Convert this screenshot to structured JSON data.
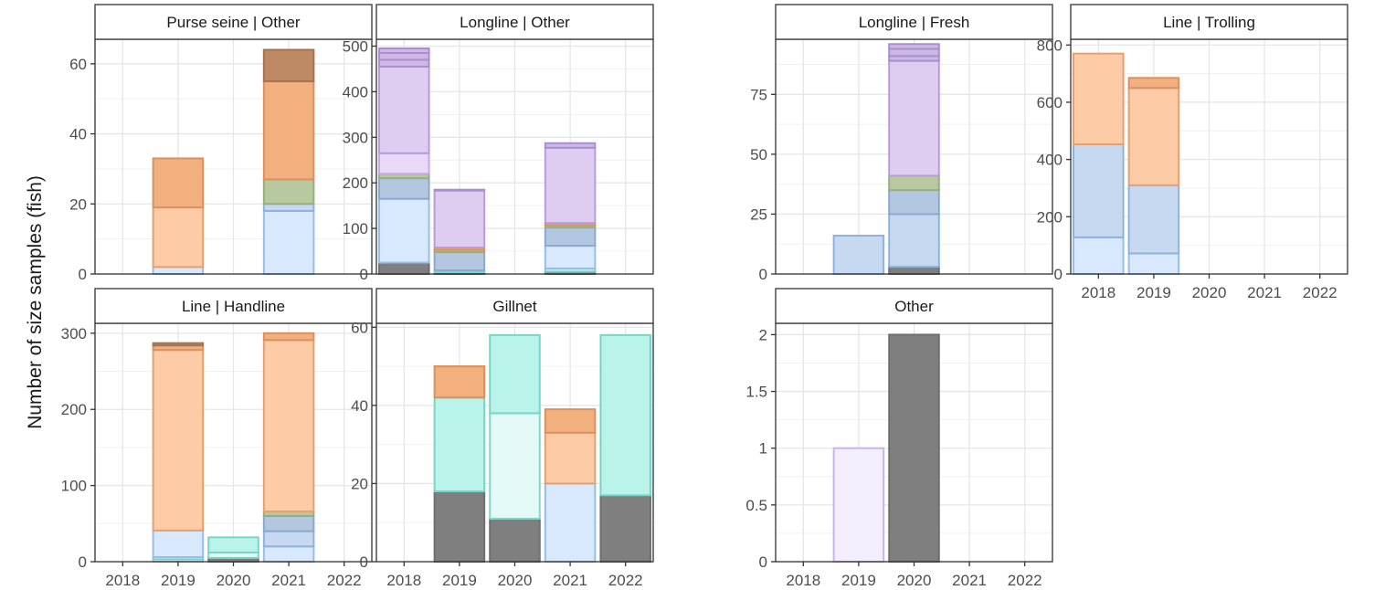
{
  "chart_data": {
    "type": "bar",
    "stacked": true,
    "ylabel": "Number of size samples (fish)",
    "xlabel": "",
    "title": "",
    "legend": "none",
    "grid": true,
    "categories": [
      "2018",
      "2019",
      "2020",
      "2021",
      "2022"
    ],
    "colors": {
      "grey": {
        "fill": "#7f7f7f",
        "stroke": "#6f6f6f"
      },
      "teal_light": {
        "fill": "#e3faf6",
        "stroke": "#7fd8c9"
      },
      "teal": {
        "fill": "#b9f3ea",
        "stroke": "#76d6c6"
      },
      "blue_light": {
        "fill": "#d9e9fd",
        "stroke": "#98bde6"
      },
      "blue_mid": {
        "fill": "#c7d9f0",
        "stroke": "#8fb2dc"
      },
      "blue_dark": {
        "fill": "#b3c7e0",
        "stroke": "#8ca8cc"
      },
      "green": {
        "fill": "#b8c9a0",
        "stroke": "#98ae7c"
      },
      "orange_light": {
        "fill": "#fdcba6",
        "stroke": "#e3a173"
      },
      "orange": {
        "fill": "#f2b07e",
        "stroke": "#d9915e"
      },
      "brown": {
        "fill": "#bd8a64",
        "stroke": "#a57352"
      },
      "purple_pale": {
        "fill": "#f4efff",
        "stroke": "#c9b4ee"
      },
      "purple_light": {
        "fill": "#ead9f6",
        "stroke": "#c4a9e6"
      },
      "purple": {
        "fill": "#dfcdf1",
        "stroke": "#b99bd9"
      },
      "purple_dark": {
        "fill": "#cdb9e3",
        "stroke": "#a98fcf"
      }
    },
    "panels": [
      {
        "strip": "Purse seine | Other",
        "ylim": [
          0,
          67
        ],
        "yticks": [
          {
            "v": 0,
            "l": "0"
          },
          {
            "v": 20,
            "l": "20"
          },
          {
            "v": 40,
            "l": "40"
          },
          {
            "v": 60,
            "l": "60"
          }
        ],
        "show_x_labels": false,
        "bars": [
          {
            "x": "2019",
            "segments": [
              [
                2,
                "blue_light"
              ],
              [
                17,
                "orange_light"
              ],
              [
                14,
                "orange"
              ]
            ]
          },
          {
            "x": "2021",
            "segments": [
              [
                18,
                "blue_light"
              ],
              [
                2,
                "blue_mid"
              ],
              [
                7,
                "green"
              ],
              [
                28,
                "orange"
              ],
              [
                9,
                "brown"
              ]
            ]
          }
        ]
      },
      {
        "strip": "Longline | Other",
        "ylim": [
          0,
          515
        ],
        "yticks": [
          {
            "v": 0,
            "l": "0"
          },
          {
            "v": 100,
            "l": "100"
          },
          {
            "v": 200,
            "l": "200"
          },
          {
            "v": 300,
            "l": "300"
          },
          {
            "v": 400,
            "l": "400"
          },
          {
            "v": 500,
            "l": "500"
          }
        ],
        "show_x_labels": false,
        "bars": [
          {
            "x": "2018",
            "segments": [
              [
                25,
                "grey"
              ],
              [
                140,
                "blue_light"
              ],
              [
                45,
                "blue_dark"
              ],
              [
                10,
                "green"
              ],
              [
                45,
                "purple_light"
              ],
              [
                190,
                "purple"
              ],
              [
                15,
                "purple_dark"
              ],
              [
                15,
                "purple_dark"
              ],
              [
                10,
                "purple_dark"
              ]
            ]
          },
          {
            "x": "2019",
            "segments": [
              [
                4,
                "grey"
              ],
              [
                4,
                "teal"
              ],
              [
                40,
                "blue_dark"
              ],
              [
                5,
                "green"
              ],
              [
                5,
                "orange"
              ],
              [
                125,
                "purple"
              ],
              [
                2,
                "purple_dark"
              ]
            ]
          },
          {
            "x": "2021",
            "segments": [
              [
                5,
                "grey"
              ],
              [
                7,
                "teal"
              ],
              [
                50,
                "blue_light"
              ],
              [
                40,
                "blue_dark"
              ],
              [
                5,
                "green"
              ],
              [
                5,
                "orange"
              ],
              [
                165,
                "purple"
              ],
              [
                10,
                "purple_dark"
              ]
            ]
          }
        ]
      },
      {
        "strip": "Longline | Fresh",
        "ylim": [
          0,
          98
        ],
        "yticks": [
          {
            "v": 0,
            "l": "0"
          },
          {
            "v": 25,
            "l": "25"
          },
          {
            "v": 50,
            "l": "50"
          },
          {
            "v": 75,
            "l": "75"
          }
        ],
        "show_x_labels": false,
        "bars": [
          {
            "x": "2019",
            "segments": [
              [
                16,
                "blue_mid"
              ]
            ]
          },
          {
            "x": "2020",
            "segments": [
              [
                3,
                "grey"
              ],
              [
                22,
                "blue_mid"
              ],
              [
                10,
                "blue_dark"
              ],
              [
                6,
                "green"
              ],
              [
                48,
                "purple"
              ],
              [
                2,
                "purple_dark"
              ],
              [
                3,
                "purple_dark"
              ],
              [
                2,
                "purple_dark"
              ]
            ]
          }
        ]
      },
      {
        "strip": "Line | Trolling",
        "ylim": [
          0,
          820
        ],
        "yticks": [
          {
            "v": 0,
            "l": "0"
          },
          {
            "v": 200,
            "l": "200"
          },
          {
            "v": 400,
            "l": "400"
          },
          {
            "v": 600,
            "l": "600"
          },
          {
            "v": 800,
            "l": "800"
          }
        ],
        "show_x_labels": true,
        "bars": [
          {
            "x": "2018",
            "segments": [
              [
                128,
                "blue_light"
              ],
              [
                325,
                "blue_mid"
              ],
              [
                317,
                "orange_light"
              ]
            ]
          },
          {
            "x": "2019",
            "segments": [
              [
                72,
                "blue_light"
              ],
              [
                238,
                "blue_mid"
              ],
              [
                340,
                "orange_light"
              ],
              [
                35,
                "orange"
              ]
            ]
          }
        ]
      },
      {
        "strip": "Line | Handline",
        "ylim": [
          0,
          313
        ],
        "yticks": [
          {
            "v": 0,
            "l": "0"
          },
          {
            "v": 100,
            "l": "100"
          },
          {
            "v": 200,
            "l": "200"
          },
          {
            "v": 300,
            "l": "300"
          }
        ],
        "show_x_labels": true,
        "bars": [
          {
            "x": "2019",
            "segments": [
              [
                3,
                "purple_pale"
              ],
              [
                3,
                "teal"
              ],
              [
                35,
                "blue_light"
              ],
              [
                237,
                "orange_light"
              ],
              [
                6,
                "orange"
              ],
              [
                3,
                "brown"
              ]
            ]
          },
          {
            "x": "2020",
            "segments": [
              [
                5,
                "grey"
              ],
              [
                7,
                "teal_light"
              ],
              [
                20,
                "teal"
              ]
            ]
          },
          {
            "x": "2021",
            "segments": [
              [
                20,
                "blue_light"
              ],
              [
                20,
                "blue_mid"
              ],
              [
                20,
                "blue_dark"
              ],
              [
                6,
                "green"
              ],
              [
                225,
                "orange_light"
              ],
              [
                9,
                "orange"
              ]
            ]
          }
        ]
      },
      {
        "strip": "Gillnet",
        "ylim": [
          0,
          61
        ],
        "yticks": [
          {
            "v": 0,
            "l": "0"
          },
          {
            "v": 20,
            "l": "20"
          },
          {
            "v": 40,
            "l": "40"
          },
          {
            "v": 60,
            "l": "60"
          }
        ],
        "show_x_labels": true,
        "bars": [
          {
            "x": "2019",
            "segments": [
              [
                18,
                "grey"
              ],
              [
                24,
                "teal"
              ],
              [
                8,
                "orange"
              ]
            ]
          },
          {
            "x": "2020",
            "segments": [
              [
                11,
                "grey"
              ],
              [
                27,
                "teal_light"
              ],
              [
                20,
                "teal"
              ]
            ]
          },
          {
            "x": "2021",
            "segments": [
              [
                20,
                "blue_light"
              ],
              [
                13,
                "orange_light"
              ],
              [
                6,
                "orange"
              ]
            ]
          },
          {
            "x": "2022",
            "segments": [
              [
                17,
                "grey"
              ],
              [
                41,
                "teal"
              ]
            ]
          }
        ]
      },
      {
        "strip": "Other",
        "ylim": [
          0,
          2.1
        ],
        "yticks": [
          {
            "v": 0,
            "l": "0"
          },
          {
            "v": 0.5,
            "l": "0.5"
          },
          {
            "v": 1,
            "l": "1"
          },
          {
            "v": 1.5,
            "l": "1.5"
          },
          {
            "v": 2,
            "l": "2"
          }
        ],
        "show_x_labels": true,
        "bars": [
          {
            "x": "2019",
            "segments": [
              [
                1,
                "purple_pale"
              ]
            ]
          },
          {
            "x": "2020",
            "segments": [
              [
                2,
                "grey"
              ]
            ]
          }
        ]
      }
    ]
  }
}
